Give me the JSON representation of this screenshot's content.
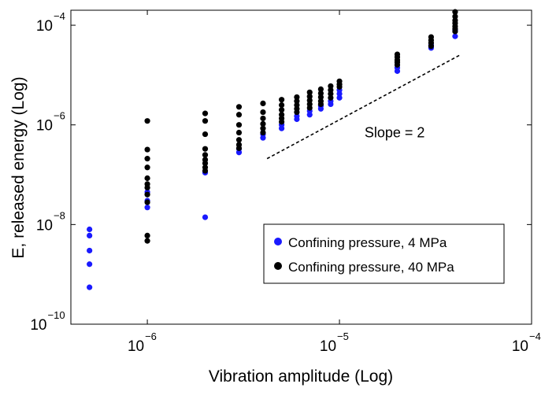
{
  "chart_data": {
    "type": "scatter",
    "title": "",
    "xlabel": "Vibration amplitude (Log)",
    "ylabel": "E, released energy (Log)",
    "x_scale": "log",
    "y_scale": "log",
    "xlim": [
      4e-07,
      0.0001
    ],
    "ylim": [
      1e-10,
      0.0002
    ],
    "grid": false,
    "legend_position": "lower-right",
    "x_ticks": [
      {
        "value": 1e-06,
        "base": "10",
        "exp": "−6"
      },
      {
        "value": 1e-05,
        "base": "10",
        "exp": "−5"
      },
      {
        "value": 0.0001,
        "base": "10",
        "exp": "−4"
      }
    ],
    "y_ticks": [
      {
        "value": 1e-10,
        "base": "10",
        "exp": "−10"
      },
      {
        "value": 1e-08,
        "base": "10",
        "exp": "−8"
      },
      {
        "value": 1e-06,
        "base": "10",
        "exp": "−6"
      },
      {
        "value": 0.0001,
        "base": "10",
        "exp": "−4"
      }
    ],
    "series": [
      {
        "name": "Confining pressure, 4 MPa",
        "color": "#1a1aff",
        "points": [
          [
            5e-07,
            8e-09
          ],
          [
            5e-07,
            6e-09
          ],
          [
            5e-07,
            3e-09
          ],
          [
            5e-07,
            1.6e-09
          ],
          [
            5e-07,
            5.5e-10
          ],
          [
            1e-06,
            4.5e-08
          ],
          [
            1e-06,
            3e-08
          ],
          [
            1e-06,
            2.2e-08
          ],
          [
            2e-06,
            1.1e-07
          ],
          [
            2e-06,
            1.4e-08
          ],
          [
            3e-06,
            2.8e-07
          ],
          [
            3e-06,
            3.3e-07
          ],
          [
            4e-06,
            5.5e-07
          ],
          [
            4e-06,
            6.5e-07
          ],
          [
            5e-06,
            8.5e-07
          ],
          [
            5e-06,
            1e-06
          ],
          [
            6e-06,
            1.3e-06
          ],
          [
            6e-06,
            1.5e-06
          ],
          [
            7e-06,
            1.6e-06
          ],
          [
            7e-06,
            1.9e-06
          ],
          [
            8e-06,
            2.1e-06
          ],
          [
            8e-06,
            2.4e-06
          ],
          [
            9e-06,
            2.6e-06
          ],
          [
            9e-06,
            3e-06
          ],
          [
            1e-05,
            3.5e-06
          ],
          [
            1e-05,
            4.2e-06
          ],
          [
            1e-05,
            5e-06
          ],
          [
            2e-05,
            1.2e-05
          ],
          [
            2e-05,
            1.4e-05
          ],
          [
            3e-05,
            3.5e-05
          ],
          [
            3e-05,
            4e-05
          ],
          [
            4e-05,
            6e-05
          ],
          [
            4e-05,
            8e-05
          ]
        ]
      },
      {
        "name": "Confining pressure, 40 MPa",
        "color": "#000000",
        "points": [
          [
            1e-06,
            1.2e-06
          ],
          [
            1e-06,
            3.2e-07
          ],
          [
            1e-06,
            2.1e-07
          ],
          [
            1e-06,
            1.4e-07
          ],
          [
            1e-06,
            8.5e-08
          ],
          [
            1e-06,
            6.5e-08
          ],
          [
            1e-06,
            5.5e-08
          ],
          [
            1e-06,
            4e-08
          ],
          [
            1e-06,
            2.8e-08
          ],
          [
            1e-06,
            6e-09
          ],
          [
            1e-06,
            4.7e-09
          ],
          [
            2e-06,
            1.7e-06
          ],
          [
            2e-06,
            1.2e-06
          ],
          [
            2e-06,
            6.5e-07
          ],
          [
            2e-06,
            3.3e-07
          ],
          [
            2e-06,
            2.5e-07
          ],
          [
            2e-06,
            2e-07
          ],
          [
            2e-06,
            1.7e-07
          ],
          [
            2e-06,
            1.4e-07
          ],
          [
            2e-06,
            1.2e-07
          ],
          [
            3e-06,
            2.3e-06
          ],
          [
            3e-06,
            1.6e-06
          ],
          [
            3e-06,
            1e-06
          ],
          [
            3e-06,
            7e-07
          ],
          [
            3e-06,
            5e-07
          ],
          [
            3e-06,
            4e-07
          ],
          [
            3e-06,
            3.4e-07
          ],
          [
            4e-06,
            2.7e-06
          ],
          [
            4e-06,
            1.8e-06
          ],
          [
            4e-06,
            1.35e-06
          ],
          [
            4e-06,
            1.05e-06
          ],
          [
            4e-06,
            8.5e-07
          ],
          [
            4e-06,
            7e-07
          ],
          [
            5e-06,
            3.2e-06
          ],
          [
            5e-06,
            2.5e-06
          ],
          [
            5e-06,
            2e-06
          ],
          [
            5e-06,
            1.6e-06
          ],
          [
            5e-06,
            1.35e-06
          ],
          [
            5e-06,
            1.15e-06
          ],
          [
            6e-06,
            3.6e-06
          ],
          [
            6e-06,
            3e-06
          ],
          [
            6e-06,
            2.5e-06
          ],
          [
            6e-06,
            2.1e-06
          ],
          [
            6e-06,
            1.8e-06
          ],
          [
            7e-06,
            4.5e-06
          ],
          [
            7e-06,
            3.7e-06
          ],
          [
            7e-06,
            3.1e-06
          ],
          [
            7e-06,
            2.6e-06
          ],
          [
            7e-06,
            2.2e-06
          ],
          [
            8e-06,
            5.2e-06
          ],
          [
            8e-06,
            4.3e-06
          ],
          [
            8e-06,
            3.6e-06
          ],
          [
            8e-06,
            3e-06
          ],
          [
            8e-06,
            2.6e-06
          ],
          [
            9e-06,
            6e-06
          ],
          [
            9e-06,
            5e-06
          ],
          [
            9e-06,
            4.2e-06
          ],
          [
            9e-06,
            3.5e-06
          ],
          [
            1e-05,
            7.5e-06
          ],
          [
            1e-05,
            6.5e-06
          ],
          [
            1e-05,
            5.8e-06
          ],
          [
            2e-05,
            2.6e-05
          ],
          [
            2e-05,
            2.3e-05
          ],
          [
            2e-05,
            2e-05
          ],
          [
            2e-05,
            1.8e-05
          ],
          [
            2e-05,
            1.6e-05
          ],
          [
            3e-05,
            5.8e-05
          ],
          [
            3e-05,
            5e-05
          ],
          [
            3e-05,
            4.4e-05
          ],
          [
            3e-05,
            3.8e-05
          ],
          [
            4e-05,
            0.000185
          ],
          [
            4e-05,
            0.00015
          ],
          [
            4e-05,
            0.000125
          ],
          [
            4e-05,
            0.00011
          ],
          [
            4e-05,
            9.5e-05
          ],
          [
            4e-05,
            8.5e-05
          ],
          [
            4e-05,
            7.5e-05
          ]
        ]
      }
    ],
    "annotation": {
      "text": "Slope = 2",
      "x": 1.35e-05,
      "y": 7e-07
    },
    "reference_line": {
      "from": [
        4.2e-06,
        2.1e-07
      ],
      "to": [
        4.3e-05,
        2.6e-05
      ]
    }
  }
}
